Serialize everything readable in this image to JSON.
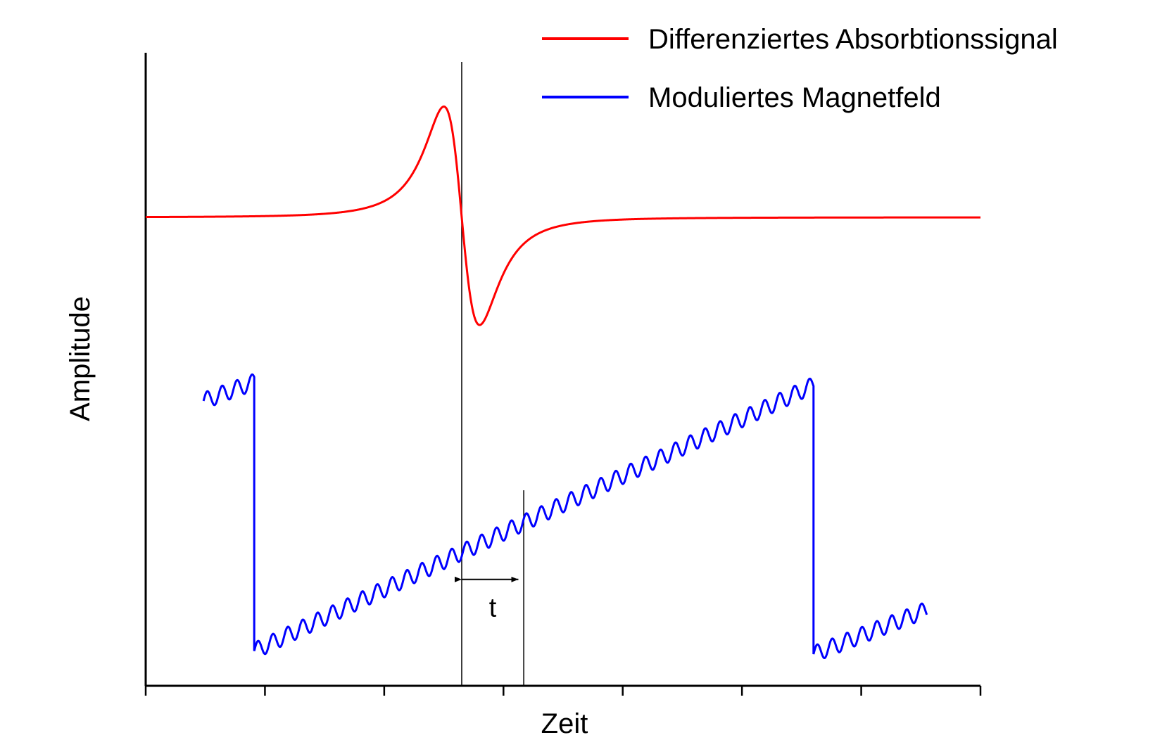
{
  "chart_data": {
    "type": "line",
    "xlabel": "Zeit",
    "ylabel": "Amplitude",
    "xlim": [
      0,
      14
    ],
    "ylim": [
      0,
      10
    ],
    "x_ticks": [
      0,
      2,
      4,
      6,
      8,
      10,
      12,
      14
    ],
    "tick_labels_visible": false,
    "grid": false,
    "legend_position": "top-right",
    "series": [
      {
        "name": "Differenziertes Absorbtionssignal",
        "color": "#ff0000",
        "shape": "derivative-lorentzian",
        "x_range": [
          0,
          14
        ],
        "baseline": 7.4,
        "center_x": 5.3,
        "peak": {
          "x": 4.98,
          "y": 9.15
        },
        "trough": {
          "x": 5.6,
          "y": 5.7
        }
      },
      {
        "name": "Moduliertes Magnetfeld",
        "color": "#0000ff",
        "shape": "sawtooth-with-sinusoidal-modulation",
        "segments": [
          {
            "x_start": 0.97,
            "x_end": 1.82,
            "y_start": 4.5,
            "y_end": 4.8
          },
          {
            "x_start": 1.82,
            "x_end": 11.2,
            "y_start": 0.55,
            "y_end": 4.75
          },
          {
            "x_start": 11.2,
            "x_end": 13.1,
            "y_start": 0.5,
            "y_end": 1.2
          }
        ],
        "modulation_period": 0.25,
        "modulation_amplitude": 0.13
      }
    ],
    "vertical_markers": [
      5.3,
      6.34
    ],
    "annotations": [
      {
        "text": "t",
        "x": 5.82,
        "y": 1.25,
        "arrow_from": 5.3,
        "arrow_to": 6.25,
        "arrow_y": 1.68
      }
    ]
  }
}
